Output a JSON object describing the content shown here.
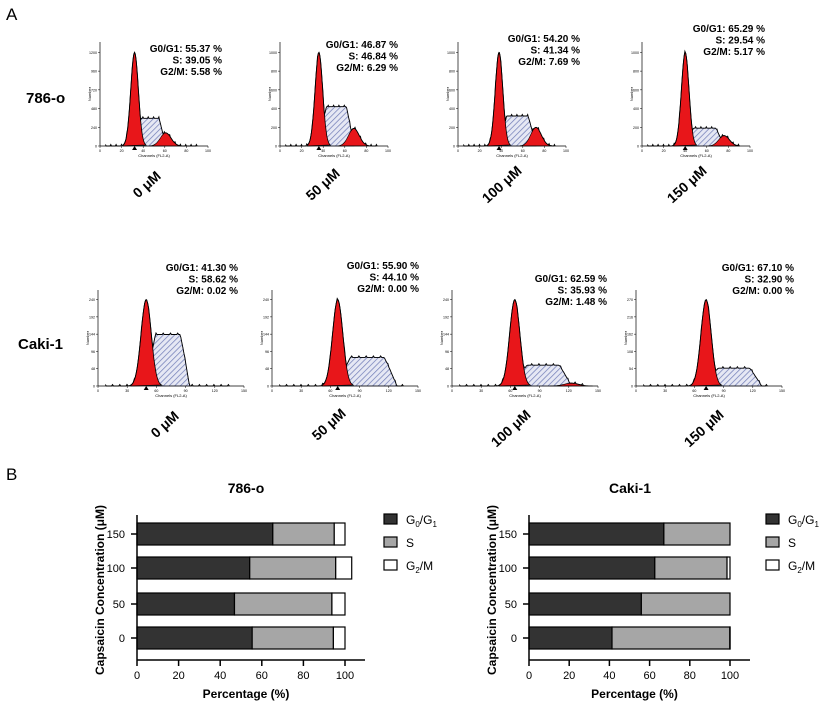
{
  "panel_labels": {
    "a": "A",
    "b": "B"
  },
  "row_labels": [
    "786-o",
    "Caki-1"
  ],
  "histogram_axis": {
    "xlabel": "Channels (FL2-A)",
    "ylabel": "Number"
  },
  "colors": {
    "g0g1_fill": "#e8161a",
    "g2m_fill": "#e8161a",
    "s_hatch": "#6d79b5",
    "bar_g0g1": "#333333",
    "bar_s": "#a6a6a6",
    "bar_g2m": "#ffffff"
  },
  "histograms": [
    {
      "row": "786-o",
      "dose": "0 μM",
      "lines": [
        {
          "label": "G0/G1:",
          "value": "55.37 %"
        },
        {
          "label": "S:",
          "value": "39.05 %"
        },
        {
          "label": "G2/M:",
          "value": "5.58 %"
        }
      ]
    },
    {
      "row": "786-o",
      "dose": "50 μM",
      "lines": [
        {
          "label": "G0/G1:",
          "value": "46.87 %"
        },
        {
          "label": "S:",
          "value": "46.84 %"
        },
        {
          "label": "G2/M:",
          "value": "6.29 %"
        }
      ]
    },
    {
      "row": "786-o",
      "dose": "100 μM",
      "lines": [
        {
          "label": "G0/G1:",
          "value": "54.20 %"
        },
        {
          "label": "S:",
          "value": "41.34 %"
        },
        {
          "label": "G2/M:",
          "value": "7.69 %"
        }
      ]
    },
    {
      "row": "786-o",
      "dose": "150 μM",
      "lines": [
        {
          "label": "G0/G1:",
          "value": "65.29 %"
        },
        {
          "label": "S:",
          "value": "29.54 %"
        },
        {
          "label": "G2/M:",
          "value": "5.17 %"
        }
      ]
    },
    {
      "row": "Caki-1",
      "dose": "0 μM",
      "lines": [
        {
          "label": "G0/G1:",
          "value": "41.30 %"
        },
        {
          "label": "S:",
          "value": "58.62 %"
        },
        {
          "label": "G2/M:",
          "value": "0.02 %"
        }
      ]
    },
    {
      "row": "Caki-1",
      "dose": "50 μM",
      "lines": [
        {
          "label": "G0/G1:",
          "value": "55.90 %"
        },
        {
          "label": "S:",
          "value": "44.10 %"
        },
        {
          "label": "G2/M:",
          "value": "0.00 %"
        }
      ]
    },
    {
      "row": "Caki-1",
      "dose": "100 μM",
      "lines": [
        {
          "label": "G0/G1:",
          "value": "62.59 %"
        },
        {
          "label": "S:",
          "value": "35.93 %"
        },
        {
          "label": "G2/M:",
          "value": "1.48 %"
        }
      ]
    },
    {
      "row": "Caki-1",
      "dose": "150 μM",
      "lines": [
        {
          "label": "G0/G1:",
          "value": "67.10 %"
        },
        {
          "label": "S:",
          "value": "32.90 %"
        },
        {
          "label": "G2/M:",
          "value": "0.00 %"
        }
      ]
    }
  ],
  "chart_data": [
    {
      "type": "bar",
      "orientation": "horizontal",
      "stacked": true,
      "title": "786-o",
      "xlabel": "Percentage (%)",
      "ylabel": "Capsaicin Concentration (μM)",
      "xlim": [
        0,
        100
      ],
      "xticks": [
        "0",
        "20",
        "40",
        "60",
        "80",
        "100"
      ],
      "categories": [
        "0",
        "50",
        "100",
        "150"
      ],
      "series": [
        {
          "name": "G0/G1",
          "values": [
            55.37,
            46.87,
            54.2,
            65.29
          ]
        },
        {
          "name": "S",
          "values": [
            39.05,
            46.84,
            41.34,
            29.54
          ]
        },
        {
          "name": "G2/M",
          "values": [
            5.58,
            6.29,
            7.69,
            5.17
          ]
        }
      ],
      "legend_position": "right"
    },
    {
      "type": "bar",
      "orientation": "horizontal",
      "stacked": true,
      "title": "Caki-1",
      "xlabel": "Percentage (%)",
      "ylabel": "Capsaicin Concentration (μM)",
      "xlim": [
        0,
        100
      ],
      "xticks": [
        "0",
        "20",
        "40",
        "60",
        "80",
        "100"
      ],
      "categories": [
        "0",
        "50",
        "100",
        "150"
      ],
      "series": [
        {
          "name": "G0/G1",
          "values": [
            41.3,
            55.9,
            62.59,
            67.1
          ]
        },
        {
          "name": "S",
          "values": [
            58.62,
            44.1,
            35.93,
            32.9
          ]
        },
        {
          "name": "G2/M",
          "values": [
            0.02,
            0.0,
            1.48,
            0.0
          ]
        }
      ],
      "legend_position": "right"
    }
  ]
}
